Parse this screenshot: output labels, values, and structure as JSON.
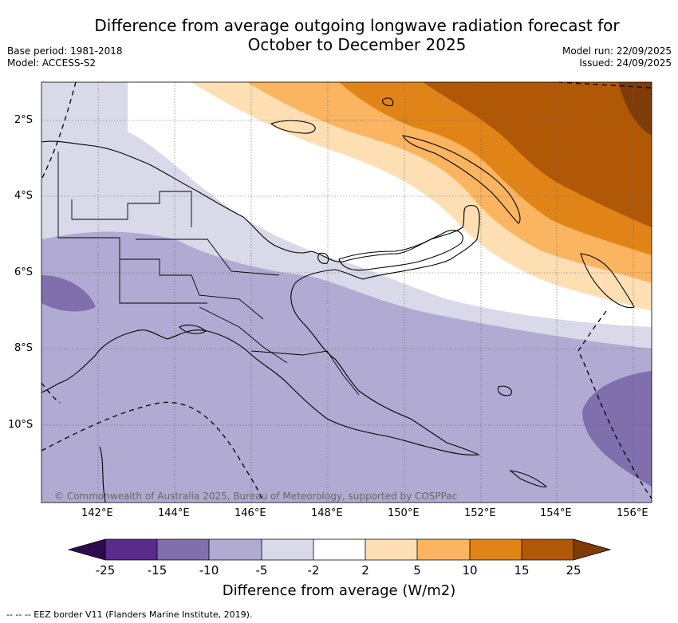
{
  "title": {
    "line1": "Difference from average outgoing longwave radiation forecast for",
    "line2": "October to December 2025"
  },
  "meta": {
    "base_period": "Base period: 1981-2018",
    "model": "Model: ACCESS-S2",
    "model_run": "Model run: 22/09/2025",
    "issued": "Issued: 24/09/2025"
  },
  "map": {
    "lat_labels": [
      "2°S",
      "4°S",
      "6°S",
      "8°S",
      "10°S"
    ],
    "lon_labels": [
      "142°E",
      "144°E",
      "146°E",
      "148°E",
      "150°E",
      "152°E",
      "154°E",
      "156°E"
    ],
    "copyright": "© Commonwealth of Australia 2025, Bureau of Meteorology, supported by COSPPac"
  },
  "colorbar": {
    "labels": [
      "-25",
      "-15",
      "-10",
      "-5",
      "-2",
      "2",
      "5",
      "10",
      "15",
      "25"
    ],
    "colors": {
      "lt_m25": "#2e0b4f",
      "m25_m15": "#5a2a8c",
      "m15_m10": "#7f6fac",
      "m10_m5": "#b1abd3",
      "m5_m2": "#d9d9ea",
      "m2_2": "#ffffff",
      "p2_5": "#fedfb4",
      "p5_10": "#fbb45f",
      "p10_15": "#e08418",
      "p15_25": "#b15806",
      "gt_25": "#7f3b08"
    },
    "title": "Difference from average (W/m2)"
  },
  "legend": {
    "eez": "--  --  -- EEZ border V11 (Flanders Marine Institute, 2019)."
  }
}
